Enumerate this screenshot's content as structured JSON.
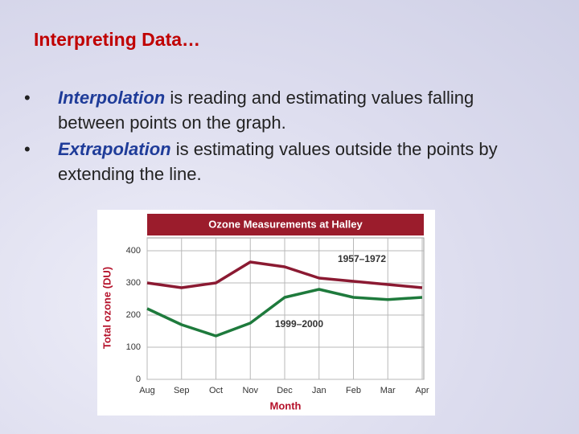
{
  "slide": {
    "title": "Interpreting Data…",
    "bullets": [
      {
        "term": "Interpolation",
        "text": " is reading and estimating values falling between points on the graph."
      },
      {
        "term": "Extrapolation",
        "text": " is estimating values outside the points by extending the line."
      }
    ]
  },
  "chart_data": {
    "type": "line",
    "title": "Ozone Measurements at Halley",
    "x_label": "Month",
    "y_label": "Total ozone (DU)",
    "categories": [
      "Aug",
      "Sep",
      "Oct",
      "Nov",
      "Dec",
      "Jan",
      "Feb",
      "Mar",
      "Apr"
    ],
    "series": [
      {
        "name": "1957–1972",
        "color": "#8b1a32",
        "values": [
          300,
          285,
          300,
          365,
          350,
          315,
          305,
          295,
          285
        ]
      },
      {
        "name": "1999–2000",
        "color": "#1e7a3c",
        "values": [
          220,
          170,
          135,
          175,
          255,
          280,
          255,
          248,
          255
        ]
      }
    ],
    "ylim": [
      0,
      440
    ],
    "yticks": [
      0,
      100,
      200,
      300,
      400
    ],
    "grid": true
  }
}
